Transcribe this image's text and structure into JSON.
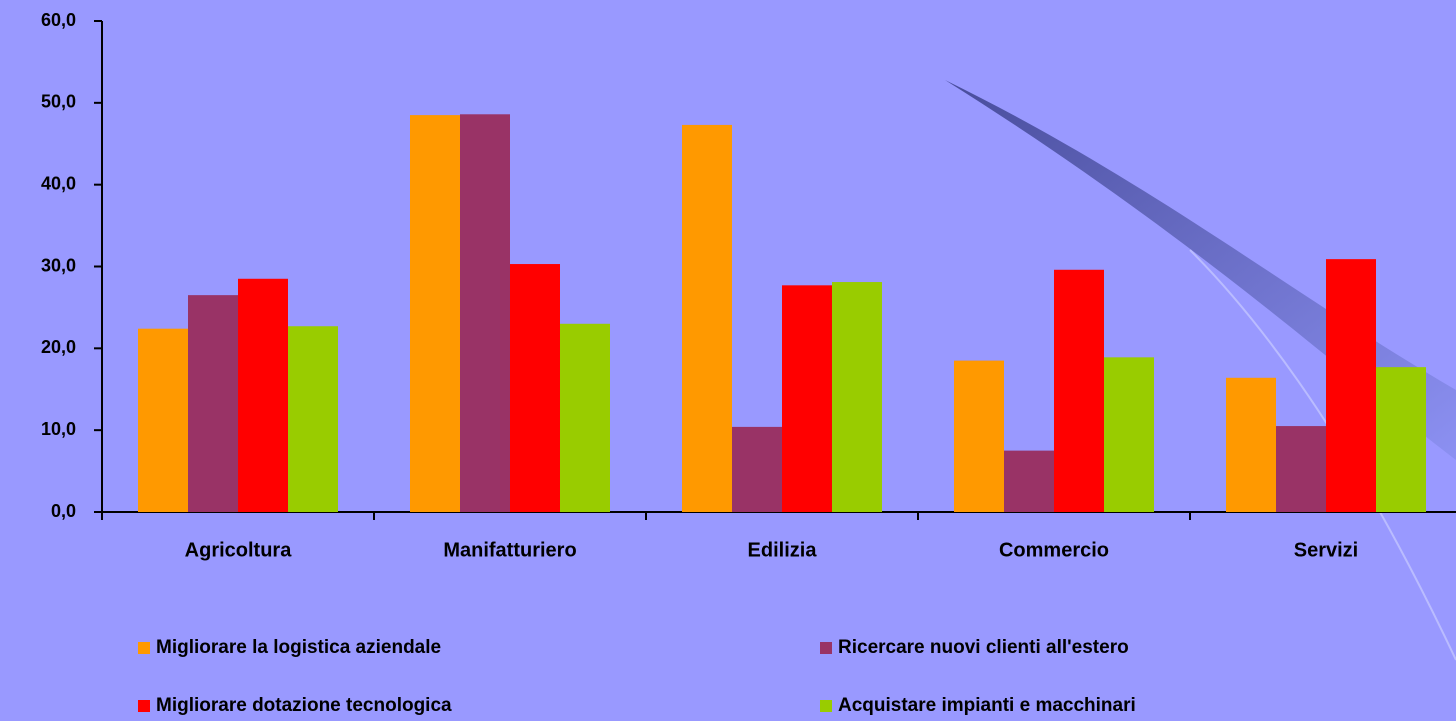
{
  "chart_data": {
    "type": "bar",
    "categories": [
      "Agricoltura",
      "Manifatturiero",
      "Edilizia",
      "Commercio",
      "Servizi"
    ],
    "series": [
      {
        "name": "Migliorare la logistica aziendale",
        "color": "#ff9900",
        "values": [
          22.4,
          48.5,
          47.3,
          18.5,
          16.4
        ]
      },
      {
        "name": "Ricercare nuovi clienti all'estero",
        "color": "#993366",
        "values": [
          26.5,
          48.6,
          10.4,
          7.5,
          10.5
        ]
      },
      {
        "name": "Migliorare dotazione tecnologica",
        "color": "#ff0000",
        "values": [
          28.5,
          30.3,
          27.7,
          29.6,
          30.9
        ]
      },
      {
        "name": "Acquistare impianti e macchinari",
        "color": "#99cc00",
        "values": [
          22.7,
          23.0,
          28.1,
          18.9,
          17.7
        ]
      }
    ],
    "ylim": [
      0,
      60
    ],
    "yticks": [
      {
        "value": 0,
        "label": "0,0"
      },
      {
        "value": 10,
        "label": "10,0"
      },
      {
        "value": 20,
        "label": "20,0"
      },
      {
        "value": 30,
        "label": "30,0"
      },
      {
        "value": 40,
        "label": "40,0"
      },
      {
        "value": 50,
        "label": "50,0"
      },
      {
        "value": 60,
        "label": "60,0"
      }
    ],
    "grid": false
  }
}
